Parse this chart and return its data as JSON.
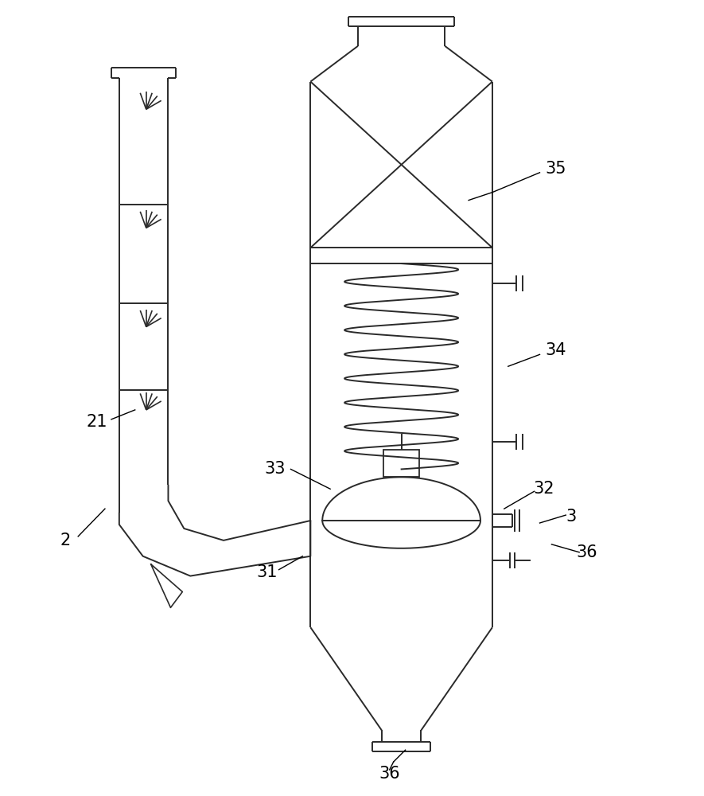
{
  "bg_color": "#ffffff",
  "line_color": "#2a2a2a",
  "line_width": 1.4,
  "label_fontsize": 15
}
